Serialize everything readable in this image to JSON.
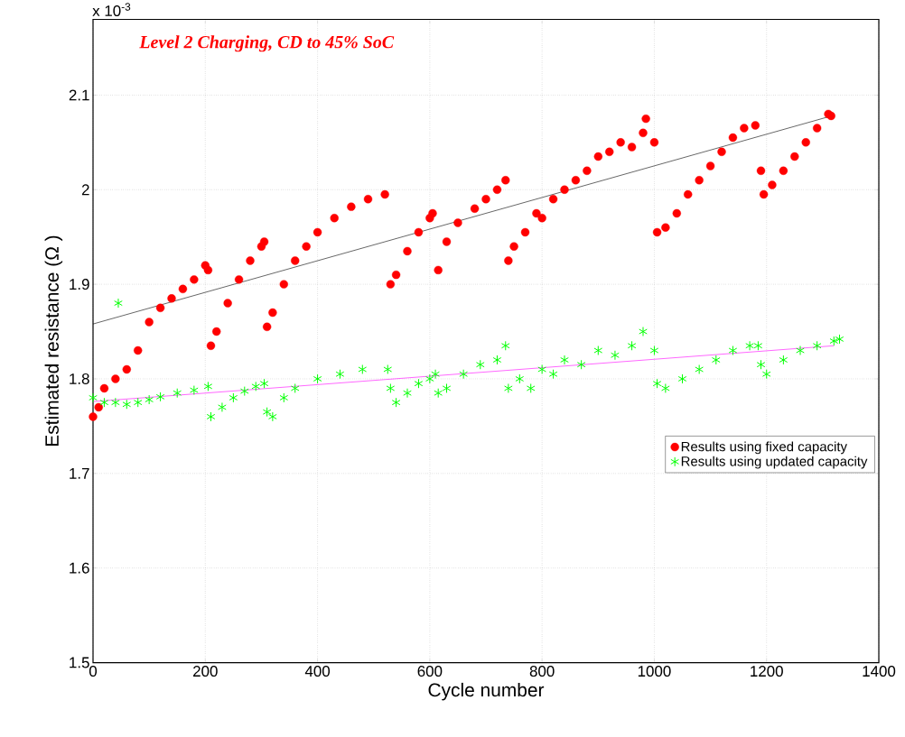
{
  "chart_data": {
    "type": "scatter",
    "title": "Level 2 Charging, CD to 45% SoC",
    "xlabel": "Cycle number",
    "ylabel": "Estimated resistance (Ω )",
    "annotations": [
      "x 10$^{-3}$"
    ],
    "xlim": [
      0,
      1400
    ],
    "ylim": [
      1.5,
      2.18
    ],
    "xticks": [
      0,
      200,
      400,
      600,
      800,
      1000,
      1200,
      1400
    ],
    "yticks": [
      1.5,
      1.6,
      1.7,
      1.8,
      1.9,
      2,
      2.1
    ],
    "grid": true,
    "legend": "bottom right",
    "series": [
      {
        "name": "Results using fixed capacity",
        "color": "#ff0000",
        "marker": "circle",
        "x": [
          0,
          10,
          20,
          40,
          60,
          80,
          100,
          120,
          140,
          160,
          180,
          200,
          205,
          210,
          220,
          240,
          260,
          280,
          300,
          305,
          310,
          320,
          340,
          360,
          380,
          400,
          430,
          460,
          490,
          520,
          530,
          540,
          560,
          580,
          600,
          605,
          615,
          630,
          650,
          680,
          700,
          720,
          735,
          740,
          750,
          770,
          790,
          800,
          820,
          840,
          860,
          880,
          900,
          920,
          940,
          960,
          980,
          985,
          1000,
          1005,
          1020,
          1040,
          1060,
          1080,
          1100,
          1120,
          1140,
          1160,
          1180,
          1190,
          1195,
          1210,
          1230,
          1250,
          1270,
          1290,
          1310,
          1315
        ],
        "values": [
          1.76,
          1.77,
          1.79,
          1.8,
          1.81,
          1.83,
          1.86,
          1.875,
          1.885,
          1.895,
          1.905,
          1.92,
          1.915,
          1.835,
          1.85,
          1.88,
          1.905,
          1.925,
          1.94,
          1.945,
          1.855,
          1.87,
          1.9,
          1.925,
          1.94,
          1.955,
          1.97,
          1.982,
          1.99,
          1.995,
          1.9,
          1.91,
          1.935,
          1.955,
          1.97,
          1.975,
          1.915,
          1.945,
          1.965,
          1.98,
          1.99,
          2.0,
          2.01,
          1.925,
          1.94,
          1.955,
          1.975,
          1.97,
          1.99,
          2.0,
          2.01,
          2.02,
          2.035,
          2.04,
          2.05,
          2.045,
          2.06,
          2.075,
          2.05,
          1.955,
          1.96,
          1.975,
          1.995,
          2.01,
          2.025,
          2.04,
          2.055,
          2.065,
          2.068,
          2.02,
          1.995,
          2.005,
          2.02,
          2.035,
          2.05,
          2.065,
          2.08,
          2.078
        ]
      },
      {
        "name": "Results using updated capacity",
        "color": "#00ff00",
        "marker": "cross",
        "x": [
          0,
          20,
          40,
          45,
          60,
          80,
          100,
          120,
          150,
          180,
          205,
          210,
          230,
          250,
          270,
          290,
          305,
          310,
          320,
          340,
          360,
          400,
          440,
          480,
          525,
          530,
          540,
          560,
          580,
          600,
          610,
          615,
          630,
          660,
          690,
          720,
          735,
          740,
          760,
          780,
          800,
          820,
          840,
          870,
          900,
          930,
          960,
          980,
          1000,
          1005,
          1020,
          1050,
          1080,
          1110,
          1140,
          1170,
          1185,
          1190,
          1200,
          1230,
          1260,
          1290,
          1320,
          1330
        ],
        "values": [
          1.78,
          1.775,
          1.775,
          1.88,
          1.773,
          1.775,
          1.778,
          1.781,
          1.785,
          1.788,
          1.792,
          1.76,
          1.77,
          1.78,
          1.787,
          1.792,
          1.795,
          1.765,
          1.76,
          1.78,
          1.79,
          1.8,
          1.805,
          1.81,
          1.81,
          1.79,
          1.775,
          1.785,
          1.795,
          1.8,
          1.805,
          1.785,
          1.79,
          1.805,
          1.815,
          1.82,
          1.835,
          1.79,
          1.8,
          1.79,
          1.81,
          1.805,
          1.82,
          1.815,
          1.83,
          1.825,
          1.835,
          1.85,
          1.83,
          1.795,
          1.79,
          1.8,
          1.81,
          1.82,
          1.83,
          1.835,
          1.835,
          1.815,
          1.805,
          1.82,
          1.83,
          1.835,
          1.84,
          1.842
        ]
      },
      {
        "type": "line",
        "color": "#000000",
        "marker": "none",
        "x": [
          0,
          1310
        ],
        "values": [
          1.858,
          2.077
        ]
      },
      {
        "type": "line",
        "color": "#ff00ff",
        "marker": "none",
        "x": [
          0,
          1320
        ],
        "values": [
          1.776,
          1.835
        ]
      }
    ]
  }
}
